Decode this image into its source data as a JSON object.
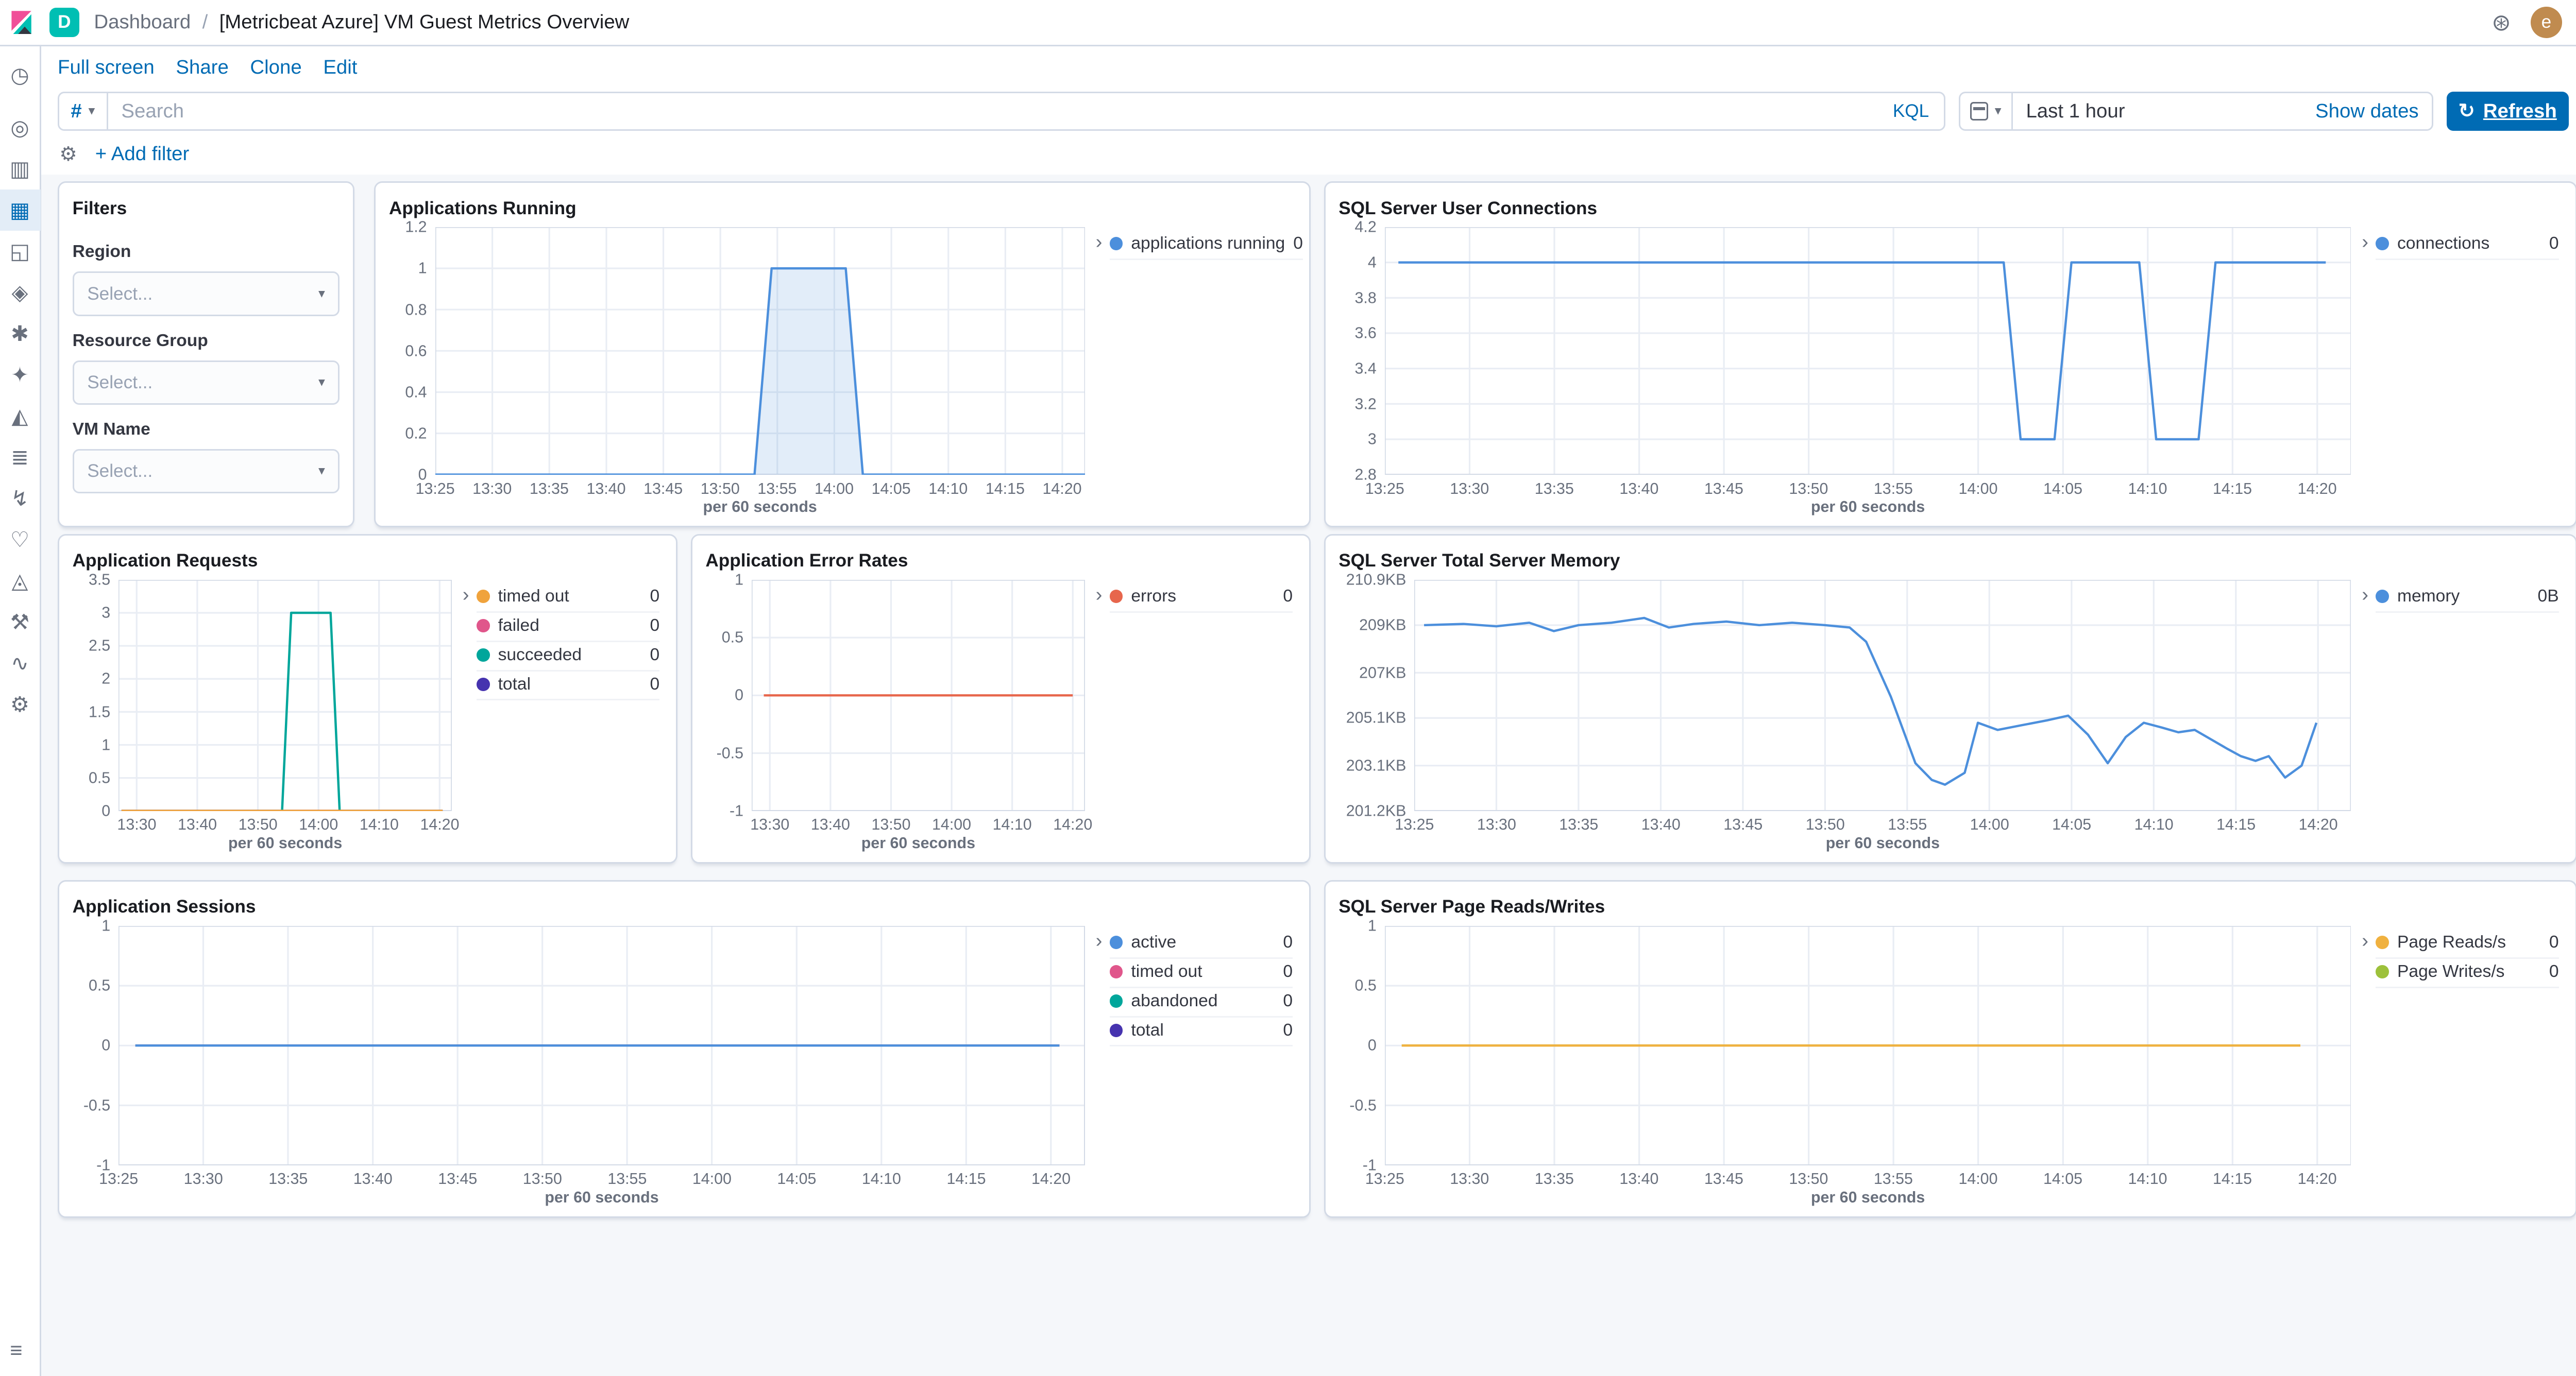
{
  "icons": {
    "caret": "▾",
    "legend_chevron": "›",
    "refresh": "↻",
    "gear": "⚙",
    "deployment": "⊛",
    "breadcrumb_separator": "/"
  },
  "header": {
    "space_badge": "D",
    "breadcrumb_root": "Dashboard",
    "breadcrumb_current": "[Metricbeat Azure] VM Guest Metrics Overview",
    "avatar_initial": "e"
  },
  "menu": {
    "items": [
      "Full screen",
      "Share",
      "Clone",
      "Edit"
    ]
  },
  "query_bar": {
    "filter_hash": "#",
    "search_placeholder": "Search",
    "kql_label": "KQL",
    "time_range": "Last 1 hour",
    "show_dates": "Show dates",
    "refresh_label": "Refresh"
  },
  "filter_bar": {
    "add_filter": "+ Add filter"
  },
  "sidebar": {
    "collapse_glyph": "≡",
    "items": [
      {
        "name": "recently-viewed",
        "glyph": "◷",
        "active": false
      },
      {
        "name": "discover",
        "glyph": "◎",
        "active": false
      },
      {
        "name": "visualize",
        "glyph": "▥",
        "active": false
      },
      {
        "name": "dashboard",
        "glyph": "▦",
        "active": true
      },
      {
        "name": "canvas",
        "glyph": "◱",
        "active": false
      },
      {
        "name": "maps",
        "glyph": "◈",
        "active": false
      },
      {
        "name": "machine-learning",
        "glyph": "✱",
        "active": false
      },
      {
        "name": "graph",
        "glyph": "✦",
        "active": false
      },
      {
        "name": "metrics",
        "glyph": "◭",
        "active": false
      },
      {
        "name": "logs",
        "glyph": "≣",
        "active": false
      },
      {
        "name": "apm",
        "glyph": "↯",
        "active": false
      },
      {
        "name": "uptime",
        "glyph": "♡",
        "active": false
      },
      {
        "name": "siem",
        "glyph": "◬",
        "active": false
      },
      {
        "name": "dev-tools",
        "glyph": "⚒",
        "active": false
      },
      {
        "name": "stack-monitoring",
        "glyph": "∿",
        "active": false
      },
      {
        "name": "management",
        "glyph": "⚙",
        "active": false
      }
    ]
  },
  "filters_panel": {
    "title": "Filters",
    "fields": [
      {
        "label": "Region",
        "placeholder": "Select..."
      },
      {
        "label": "Resource Group",
        "placeholder": "Select..."
      },
      {
        "label": "VM Name",
        "placeholder": "Select..."
      }
    ]
  },
  "chart_data": [
    {
      "id": "applications_running",
      "type": "area",
      "title": "Applications Running",
      "xlabel": "per 60 seconds",
      "ylim": [
        0,
        1.2
      ],
      "yticks": {
        "values": [
          0,
          0.2,
          0.4,
          0.6,
          0.8,
          1,
          1.2
        ],
        "labels": [
          "0",
          "0.2",
          "0.4",
          "0.6",
          "0.8",
          "1",
          "1.2"
        ]
      },
      "xlim": [
        0,
        57
      ],
      "xticks": {
        "values": [
          0,
          5,
          10,
          15,
          20,
          25,
          30,
          35,
          40,
          45,
          50,
          55
        ],
        "labels": [
          "13:25",
          "13:30",
          "13:35",
          "13:40",
          "13:45",
          "13:50",
          "13:55",
          "14:00",
          "14:05",
          "14:10",
          "14:15",
          "14:20"
        ]
      },
      "legend": [
        {
          "label": "applications running",
          "value": "0",
          "color": "#4C8FDC"
        }
      ],
      "series": [
        {
          "name": "applications running",
          "color": "#4C8FDC",
          "fill": "rgba(76,143,220,0.16)",
          "points": [
            [
              0,
              0
            ],
            [
              28,
              0
            ],
            [
              29.5,
              1
            ],
            [
              36,
              1
            ],
            [
              37.5,
              0
            ],
            [
              57,
              0
            ]
          ]
        }
      ]
    },
    {
      "id": "sql_server_user_connections",
      "type": "line",
      "title": "SQL Server User Connections",
      "xlabel": "per 60 seconds",
      "ylim": [
        2.8,
        4.2
      ],
      "yticks": {
        "values": [
          2.8,
          3,
          3.2,
          3.4,
          3.6,
          3.8,
          4,
          4.2
        ],
        "labels": [
          "2.8",
          "3",
          "3.2",
          "3.4",
          "3.6",
          "3.8",
          "4",
          "4.2"
        ]
      },
      "xlim": [
        0,
        57
      ],
      "xticks": {
        "values": [
          0,
          5,
          10,
          15,
          20,
          25,
          30,
          35,
          40,
          45,
          50,
          55
        ],
        "labels": [
          "13:25",
          "13:30",
          "13:35",
          "13:40",
          "13:45",
          "13:50",
          "13:55",
          "14:00",
          "14:05",
          "14:10",
          "14:15",
          "14:20"
        ]
      },
      "legend": [
        {
          "label": "connections",
          "value": "0",
          "color": "#4C8FDC"
        }
      ],
      "series": [
        {
          "name": "connections",
          "color": "#4C8FDC",
          "points": [
            [
              0.8,
              4
            ],
            [
              36.5,
              4
            ],
            [
              37.5,
              3
            ],
            [
              39.5,
              3
            ],
            [
              40.5,
              4
            ],
            [
              44.5,
              4
            ],
            [
              45.5,
              3
            ],
            [
              48,
              3
            ],
            [
              49,
              4
            ],
            [
              55.5,
              4
            ]
          ]
        }
      ]
    },
    {
      "id": "application_requests",
      "type": "line",
      "title": "Application Requests",
      "xlabel": "per 60 seconds",
      "ylim": [
        0,
        3.5
      ],
      "yticks": {
        "values": [
          0,
          0.5,
          1,
          1.5,
          2,
          2.5,
          3,
          3.5
        ],
        "labels": [
          "0",
          "0.5",
          "1",
          "1.5",
          "2",
          "2.5",
          "3",
          "3.5"
        ]
      },
      "xlim": [
        2,
        57
      ],
      "xticks": {
        "values": [
          5,
          15,
          25,
          35,
          45,
          55
        ],
        "labels": [
          "13:30",
          "13:40",
          "13:50",
          "14:00",
          "14:10",
          "14:20"
        ]
      },
      "legend": [
        {
          "label": "timed out",
          "value": "0",
          "color": "#F0A33C"
        },
        {
          "label": "failed",
          "value": "0",
          "color": "#E0568B"
        },
        {
          "label": "succeeded",
          "value": "0",
          "color": "#00A69B"
        },
        {
          "label": "total",
          "value": "0",
          "color": "#4633AF"
        }
      ],
      "series": [
        {
          "name": "total",
          "color": "#4633AF",
          "points": [
            [
              2.5,
              0
            ],
            [
              55.5,
              0
            ]
          ]
        },
        {
          "name": "succeeded",
          "color": "#00A69B",
          "points": [
            [
              2.5,
              0
            ],
            [
              29,
              0
            ],
            [
              30.5,
              3
            ],
            [
              37,
              3
            ],
            [
              38.5,
              0
            ],
            [
              55.5,
              0
            ]
          ]
        },
        {
          "name": "failed",
          "color": "#E0568B",
          "points": [
            [
              2.5,
              0
            ],
            [
              55.5,
              0
            ]
          ]
        },
        {
          "name": "timed out",
          "color": "#F0A33C",
          "points": [
            [
              2.5,
              0
            ],
            [
              55.5,
              0
            ]
          ]
        }
      ]
    },
    {
      "id": "application_error_rates",
      "type": "line",
      "title": "Application Error Rates",
      "xlabel": "per 60 seconds",
      "ylim": [
        -1,
        1
      ],
      "yticks": {
        "values": [
          -1,
          -0.5,
          0,
          0.5,
          1
        ],
        "labels": [
          "-1",
          "-0.5",
          "0",
          "0.5",
          "1"
        ]
      },
      "xlim": [
        2,
        57
      ],
      "xticks": {
        "values": [
          5,
          15,
          25,
          35,
          45,
          55
        ],
        "labels": [
          "13:30",
          "13:40",
          "13:50",
          "14:00",
          "14:10",
          "14:20"
        ]
      },
      "legend": [
        {
          "label": "errors",
          "value": "0",
          "color": "#E7664C"
        }
      ],
      "series": [
        {
          "name": "errors",
          "color": "#E7664C",
          "points": [
            [
              4,
              0
            ],
            [
              55,
              0
            ]
          ]
        }
      ]
    },
    {
      "id": "sql_server_total_server_memory",
      "type": "line",
      "title": "SQL Server Total Server Memory",
      "xlabel": "per 60 seconds",
      "ylim": [
        201.2,
        210.9
      ],
      "yticks": {
        "values": [
          201.2,
          203.1,
          205.1,
          207,
          209,
          210.9
        ],
        "labels": [
          "201.2KB",
          "203.1KB",
          "205.1KB",
          "207KB",
          "209KB",
          "210.9KB"
        ]
      },
      "xlim": [
        0,
        57
      ],
      "xticks": {
        "values": [
          0,
          5,
          10,
          15,
          20,
          25,
          30,
          35,
          40,
          45,
          50,
          55
        ],
        "labels": [
          "13:25",
          "13:30",
          "13:35",
          "13:40",
          "13:45",
          "13:50",
          "13:55",
          "14:00",
          "14:05",
          "14:10",
          "14:15",
          "14:20"
        ]
      },
      "legend": [
        {
          "label": "memory",
          "value": "0B",
          "color": "#4C8FDC"
        }
      ],
      "series": [
        {
          "name": "memory",
          "color": "#4C8FDC",
          "points": [
            [
              0.6,
              209
            ],
            [
              3,
              209.05
            ],
            [
              5,
              208.95
            ],
            [
              7,
              209.1
            ],
            [
              8.5,
              208.75
            ],
            [
              10,
              209
            ],
            [
              12,
              209.1
            ],
            [
              14,
              209.3
            ],
            [
              15.5,
              208.9
            ],
            [
              17,
              209.05
            ],
            [
              19,
              209.15
            ],
            [
              21,
              209
            ],
            [
              23,
              209.1
            ],
            [
              25,
              209
            ],
            [
              26.5,
              208.9
            ],
            [
              27.5,
              208.3
            ],
            [
              29,
              206
            ],
            [
              30.5,
              203.2
            ],
            [
              31.5,
              202.5
            ],
            [
              32.3,
              202.3
            ],
            [
              33.5,
              202.8
            ],
            [
              34.3,
              204.9
            ],
            [
              35.5,
              204.6
            ],
            [
              37,
              204.8
            ],
            [
              38.5,
              205
            ],
            [
              39.8,
              205.2
            ],
            [
              41,
              204.4
            ],
            [
              42.2,
              203.2
            ],
            [
              43.3,
              204.3
            ],
            [
              44.4,
              204.9
            ],
            [
              45.5,
              204.7
            ],
            [
              46.5,
              204.5
            ],
            [
              47.5,
              204.6
            ],
            [
              48.5,
              204.2
            ],
            [
              49.5,
              203.8
            ],
            [
              50.3,
              203.5
            ],
            [
              51.2,
              203.3
            ],
            [
              52,
              203.5
            ],
            [
              53,
              202.6
            ],
            [
              54,
              203.1
            ],
            [
              54.9,
              204.9
            ]
          ]
        }
      ]
    },
    {
      "id": "application_sessions",
      "type": "line",
      "title": "Application Sessions",
      "xlabel": "per 60 seconds",
      "ylim": [
        -1,
        1
      ],
      "yticks": {
        "values": [
          -1,
          -0.5,
          0,
          0.5,
          1
        ],
        "labels": [
          "-1",
          "-0.5",
          "0",
          "0.5",
          "1"
        ]
      },
      "xlim": [
        0,
        57
      ],
      "xticks": {
        "values": [
          0,
          5,
          10,
          15,
          20,
          25,
          30,
          35,
          40,
          45,
          50,
          55
        ],
        "labels": [
          "13:25",
          "13:30",
          "13:35",
          "13:40",
          "13:45",
          "13:50",
          "13:55",
          "14:00",
          "14:05",
          "14:10",
          "14:15",
          "14:20"
        ]
      },
      "legend": [
        {
          "label": "active",
          "value": "0",
          "color": "#4C8FDC"
        },
        {
          "label": "timed out",
          "value": "0",
          "color": "#E0568B"
        },
        {
          "label": "abandoned",
          "value": "0",
          "color": "#00A69B"
        },
        {
          "label": "total",
          "value": "0",
          "color": "#4633AF"
        }
      ],
      "series": [
        {
          "name": "total",
          "color": "#4633AF",
          "points": [
            [
              1,
              0
            ],
            [
              55.5,
              0
            ]
          ]
        },
        {
          "name": "abandoned",
          "color": "#00A69B",
          "points": [
            [
              1,
              0
            ],
            [
              55.5,
              0
            ]
          ]
        },
        {
          "name": "timed out",
          "color": "#E0568B",
          "points": [
            [
              1,
              0
            ],
            [
              55.5,
              0
            ]
          ]
        },
        {
          "name": "active",
          "color": "#4C8FDC",
          "points": [
            [
              1,
              0
            ],
            [
              55.5,
              0
            ]
          ]
        }
      ]
    },
    {
      "id": "sql_server_page_reads_writes",
      "type": "line",
      "title": "SQL Server Page Reads/Writes",
      "xlabel": "per 60 seconds",
      "ylim": [
        -1,
        1
      ],
      "yticks": {
        "values": [
          -1,
          -0.5,
          0,
          0.5,
          1
        ],
        "labels": [
          "-1",
          "-0.5",
          "0",
          "0.5",
          "1"
        ]
      },
      "xlim": [
        0,
        57
      ],
      "xticks": {
        "values": [
          0,
          5,
          10,
          15,
          20,
          25,
          30,
          35,
          40,
          45,
          50,
          55
        ],
        "labels": [
          "13:25",
          "13:30",
          "13:35",
          "13:40",
          "13:45",
          "13:50",
          "13:55",
          "14:00",
          "14:05",
          "14:10",
          "14:15",
          "14:20"
        ]
      },
      "legend": [
        {
          "label": "Page Reads/s",
          "value": "0",
          "color": "#F0B13F"
        },
        {
          "label": "Page Writes/s",
          "value": "0",
          "color": "#9DC13B"
        }
      ],
      "series": [
        {
          "name": "Page Writes/s",
          "color": "#9DC13B",
          "points": [
            [
              1,
              0
            ],
            [
              54,
              0
            ]
          ]
        },
        {
          "name": "Page Reads/s",
          "color": "#F0B13F",
          "points": [
            [
              1,
              0
            ],
            [
              54,
              0
            ]
          ]
        }
      ]
    }
  ]
}
